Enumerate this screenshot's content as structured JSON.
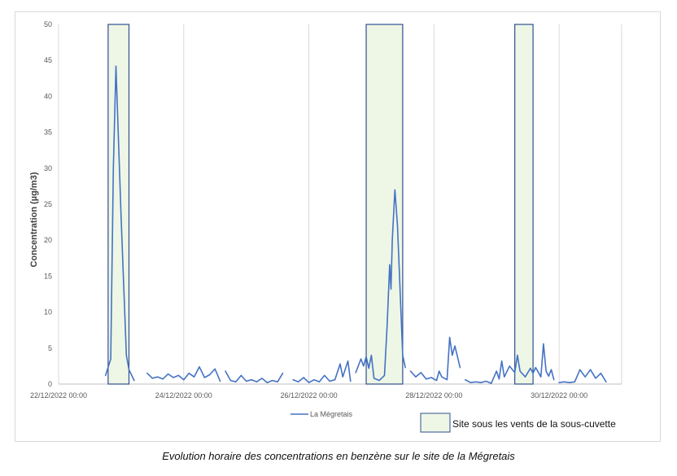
{
  "chart_data": {
    "type": "line",
    "caption": "Evolution horaire des concentrations en benzène sur le site de la Mégretais",
    "ylabel": "Concentration (µg/m3)",
    "xlabel": "",
    "ylim": [
      0,
      50
    ],
    "yticks": [
      0,
      5,
      10,
      15,
      20,
      25,
      30,
      35,
      40,
      45,
      50
    ],
    "xlim": [
      "2022-12-22 00:00",
      "2022-12-31 00:00"
    ],
    "xticks": [
      {
        "x": "2022-12-22 00:00",
        "label": "22/12/2022 00:00"
      },
      {
        "x": "2022-12-24 00:00",
        "label": "24/12/2022 00:00"
      },
      {
        "x": "2022-12-26 00:00",
        "label": "26/12/2022 00:00"
      },
      {
        "x": "2022-12-28 00:00",
        "label": "28/12/2022 00:00"
      },
      {
        "x": "2022-12-30 00:00",
        "label": "30/12/2022 00:00"
      }
    ],
    "grid": "vertical",
    "colors": {
      "line": "#4472c4",
      "box_fill": "#eef6e6",
      "box_stroke": "#2f4f8f",
      "grid": "#d9d9d9",
      "axis": "#bfbfbf"
    },
    "series": [
      {
        "name": "La Mégretais",
        "segments": [
          [
            [
              "2022-12-22 18:00",
              1.2
            ],
            [
              "2022-12-22 20:00",
              3.5
            ],
            [
              "2022-12-22 21:00",
              30
            ],
            [
              "2022-12-22 22:00",
              44.2
            ],
            [
              "2022-12-23 00:00",
              23
            ],
            [
              "2022-12-23 02:00",
              4
            ],
            [
              "2022-12-23 03:00",
              2
            ],
            [
              "2022-12-23 05:00",
              0.5
            ]
          ],
          [
            [
              "2022-12-23 10:00",
              1.5
            ],
            [
              "2022-12-23 12:00",
              0.8
            ],
            [
              "2022-12-23 14:00",
              1.0
            ],
            [
              "2022-12-23 16:00",
              0.7
            ],
            [
              "2022-12-23 18:00",
              1.4
            ],
            [
              "2022-12-23 20:00",
              0.9
            ],
            [
              "2022-12-23 22:00",
              1.2
            ],
            [
              "2022-12-24 00:00",
              0.6
            ],
            [
              "2022-12-24 02:00",
              1.5
            ],
            [
              "2022-12-24 04:00",
              1.0
            ],
            [
              "2022-12-24 06:00",
              2.4
            ],
            [
              "2022-12-24 08:00",
              0.9
            ],
            [
              "2022-12-24 10:00",
              1.3
            ],
            [
              "2022-12-24 12:00",
              2.1
            ],
            [
              "2022-12-24 14:00",
              0.4
            ]
          ],
          [
            [
              "2022-12-24 16:00",
              1.8
            ],
            [
              "2022-12-24 18:00",
              0.5
            ],
            [
              "2022-12-24 20:00",
              0.3
            ],
            [
              "2022-12-24 22:00",
              1.2
            ],
            [
              "2022-12-25 00:00",
              0.4
            ],
            [
              "2022-12-25 02:00",
              0.6
            ],
            [
              "2022-12-25 04:00",
              0.3
            ],
            [
              "2022-12-25 06:00",
              0.8
            ],
            [
              "2022-12-25 08:00",
              0.2
            ],
            [
              "2022-12-25 10:00",
              0.5
            ],
            [
              "2022-12-25 12:00",
              0.3
            ],
            [
              "2022-12-25 14:00",
              1.5
            ]
          ],
          [
            [
              "2022-12-25 18:00",
              0.6
            ],
            [
              "2022-12-25 20:00",
              0.3
            ],
            [
              "2022-12-25 22:00",
              0.9
            ],
            [
              "2022-12-26 00:00",
              0.2
            ],
            [
              "2022-12-26 02:00",
              0.6
            ],
            [
              "2022-12-26 04:00",
              0.3
            ],
            [
              "2022-12-26 06:00",
              1.2
            ],
            [
              "2022-12-26 08:00",
              0.4
            ],
            [
              "2022-12-26 10:00",
              0.6
            ],
            [
              "2022-12-26 12:00",
              2.8
            ],
            [
              "2022-12-26 13:00",
              1.0
            ],
            [
              "2022-12-26 15:00",
              3.2
            ],
            [
              "2022-12-26 16:00",
              0.4
            ]
          ],
          [
            [
              "2022-12-26 18:00",
              1.6
            ],
            [
              "2022-12-26 20:00",
              3.5
            ],
            [
              "2022-12-26 21:00",
              2.5
            ],
            [
              "2022-12-26 22:00",
              3.8
            ],
            [
              "2022-12-26 23:00",
              2.2
            ],
            [
              "2022-12-27 00:00",
              4.0
            ],
            [
              "2022-12-27 01:00",
              0.8
            ],
            [
              "2022-12-27 03:00",
              0.5
            ],
            [
              "2022-12-27 05:00",
              1.2
            ],
            [
              "2022-12-27 06:00",
              8
            ],
            [
              "2022-12-27 07:00",
              16.6
            ],
            [
              "2022-12-27 07:30",
              13.2
            ],
            [
              "2022-12-27 08:00",
              20
            ],
            [
              "2022-12-27 09:00",
              27
            ],
            [
              "2022-12-27 10:00",
              22
            ],
            [
              "2022-12-27 12:00",
              4
            ],
            [
              "2022-12-27 13:00",
              2.3
            ]
          ],
          [
            [
              "2022-12-27 15:00",
              1.8
            ],
            [
              "2022-12-27 17:00",
              1.0
            ],
            [
              "2022-12-27 19:00",
              1.6
            ],
            [
              "2022-12-27 21:00",
              0.7
            ],
            [
              "2022-12-27 23:00",
              0.9
            ],
            [
              "2022-12-28 01:00",
              0.5
            ],
            [
              "2022-12-28 02:00",
              1.8
            ],
            [
              "2022-12-28 03:00",
              1.0
            ],
            [
              "2022-12-28 05:00",
              0.6
            ],
            [
              "2022-12-28 06:00",
              6.5
            ],
            [
              "2022-12-28 07:00",
              4.0
            ],
            [
              "2022-12-28 08:00",
              5.3
            ],
            [
              "2022-12-28 10:00",
              2.3
            ]
          ],
          [
            [
              "2022-12-28 12:00",
              0.6
            ],
            [
              "2022-12-28 14:00",
              0.2
            ],
            [
              "2022-12-28 16:00",
              0.3
            ],
            [
              "2022-12-28 18:00",
              0.2
            ],
            [
              "2022-12-28 20:00",
              0.4
            ],
            [
              "2022-12-28 22:00",
              0.1
            ],
            [
              "2022-12-29 00:00",
              1.8
            ],
            [
              "2022-12-29 01:00",
              0.7
            ],
            [
              "2022-12-29 02:00",
              3.2
            ],
            [
              "2022-12-29 03:00",
              1.0
            ],
            [
              "2022-12-29 05:00",
              2.5
            ],
            [
              "2022-12-29 07:00",
              1.6
            ],
            [
              "2022-12-29 08:00",
              4.0
            ],
            [
              "2022-12-29 09:00",
              1.8
            ],
            [
              "2022-12-29 11:00",
              1.0
            ],
            [
              "2022-12-29 13:00",
              2.2
            ],
            [
              "2022-12-29 14:00",
              1.5
            ],
            [
              "2022-12-29 15:00",
              2.3
            ],
            [
              "2022-12-29 17:00",
              1.0
            ],
            [
              "2022-12-29 18:00",
              5.6
            ],
            [
              "2022-12-29 19:00",
              1.8
            ],
            [
              "2022-12-29 20:00",
              1.1
            ],
            [
              "2022-12-29 21:00",
              2.0
            ],
            [
              "2022-12-29 22:00",
              0.6
            ]
          ],
          [
            [
              "2022-12-30 00:00",
              0.2
            ],
            [
              "2022-12-30 02:00",
              0.3
            ],
            [
              "2022-12-30 04:00",
              0.2
            ],
            [
              "2022-12-30 06:00",
              0.3
            ],
            [
              "2022-12-30 08:00",
              2.0
            ],
            [
              "2022-12-30 10:00",
              1.0
            ],
            [
              "2022-12-30 12:00",
              2.0
            ],
            [
              "2022-12-30 14:00",
              0.8
            ],
            [
              "2022-12-30 16:00",
              1.5
            ],
            [
              "2022-12-30 18:00",
              0.3
            ]
          ]
        ]
      }
    ],
    "highlight_ranges": [
      {
        "start": "2022-12-22 19:00",
        "end": "2022-12-23 03:00"
      },
      {
        "start": "2022-12-26 22:00",
        "end": "2022-12-27 12:00"
      },
      {
        "start": "2022-12-29 07:00",
        "end": "2022-12-29 14:00"
      }
    ],
    "legend": {
      "series_label": "La Mégretais",
      "box_label": "Site sous les vents de la sous-cuvette"
    }
  }
}
